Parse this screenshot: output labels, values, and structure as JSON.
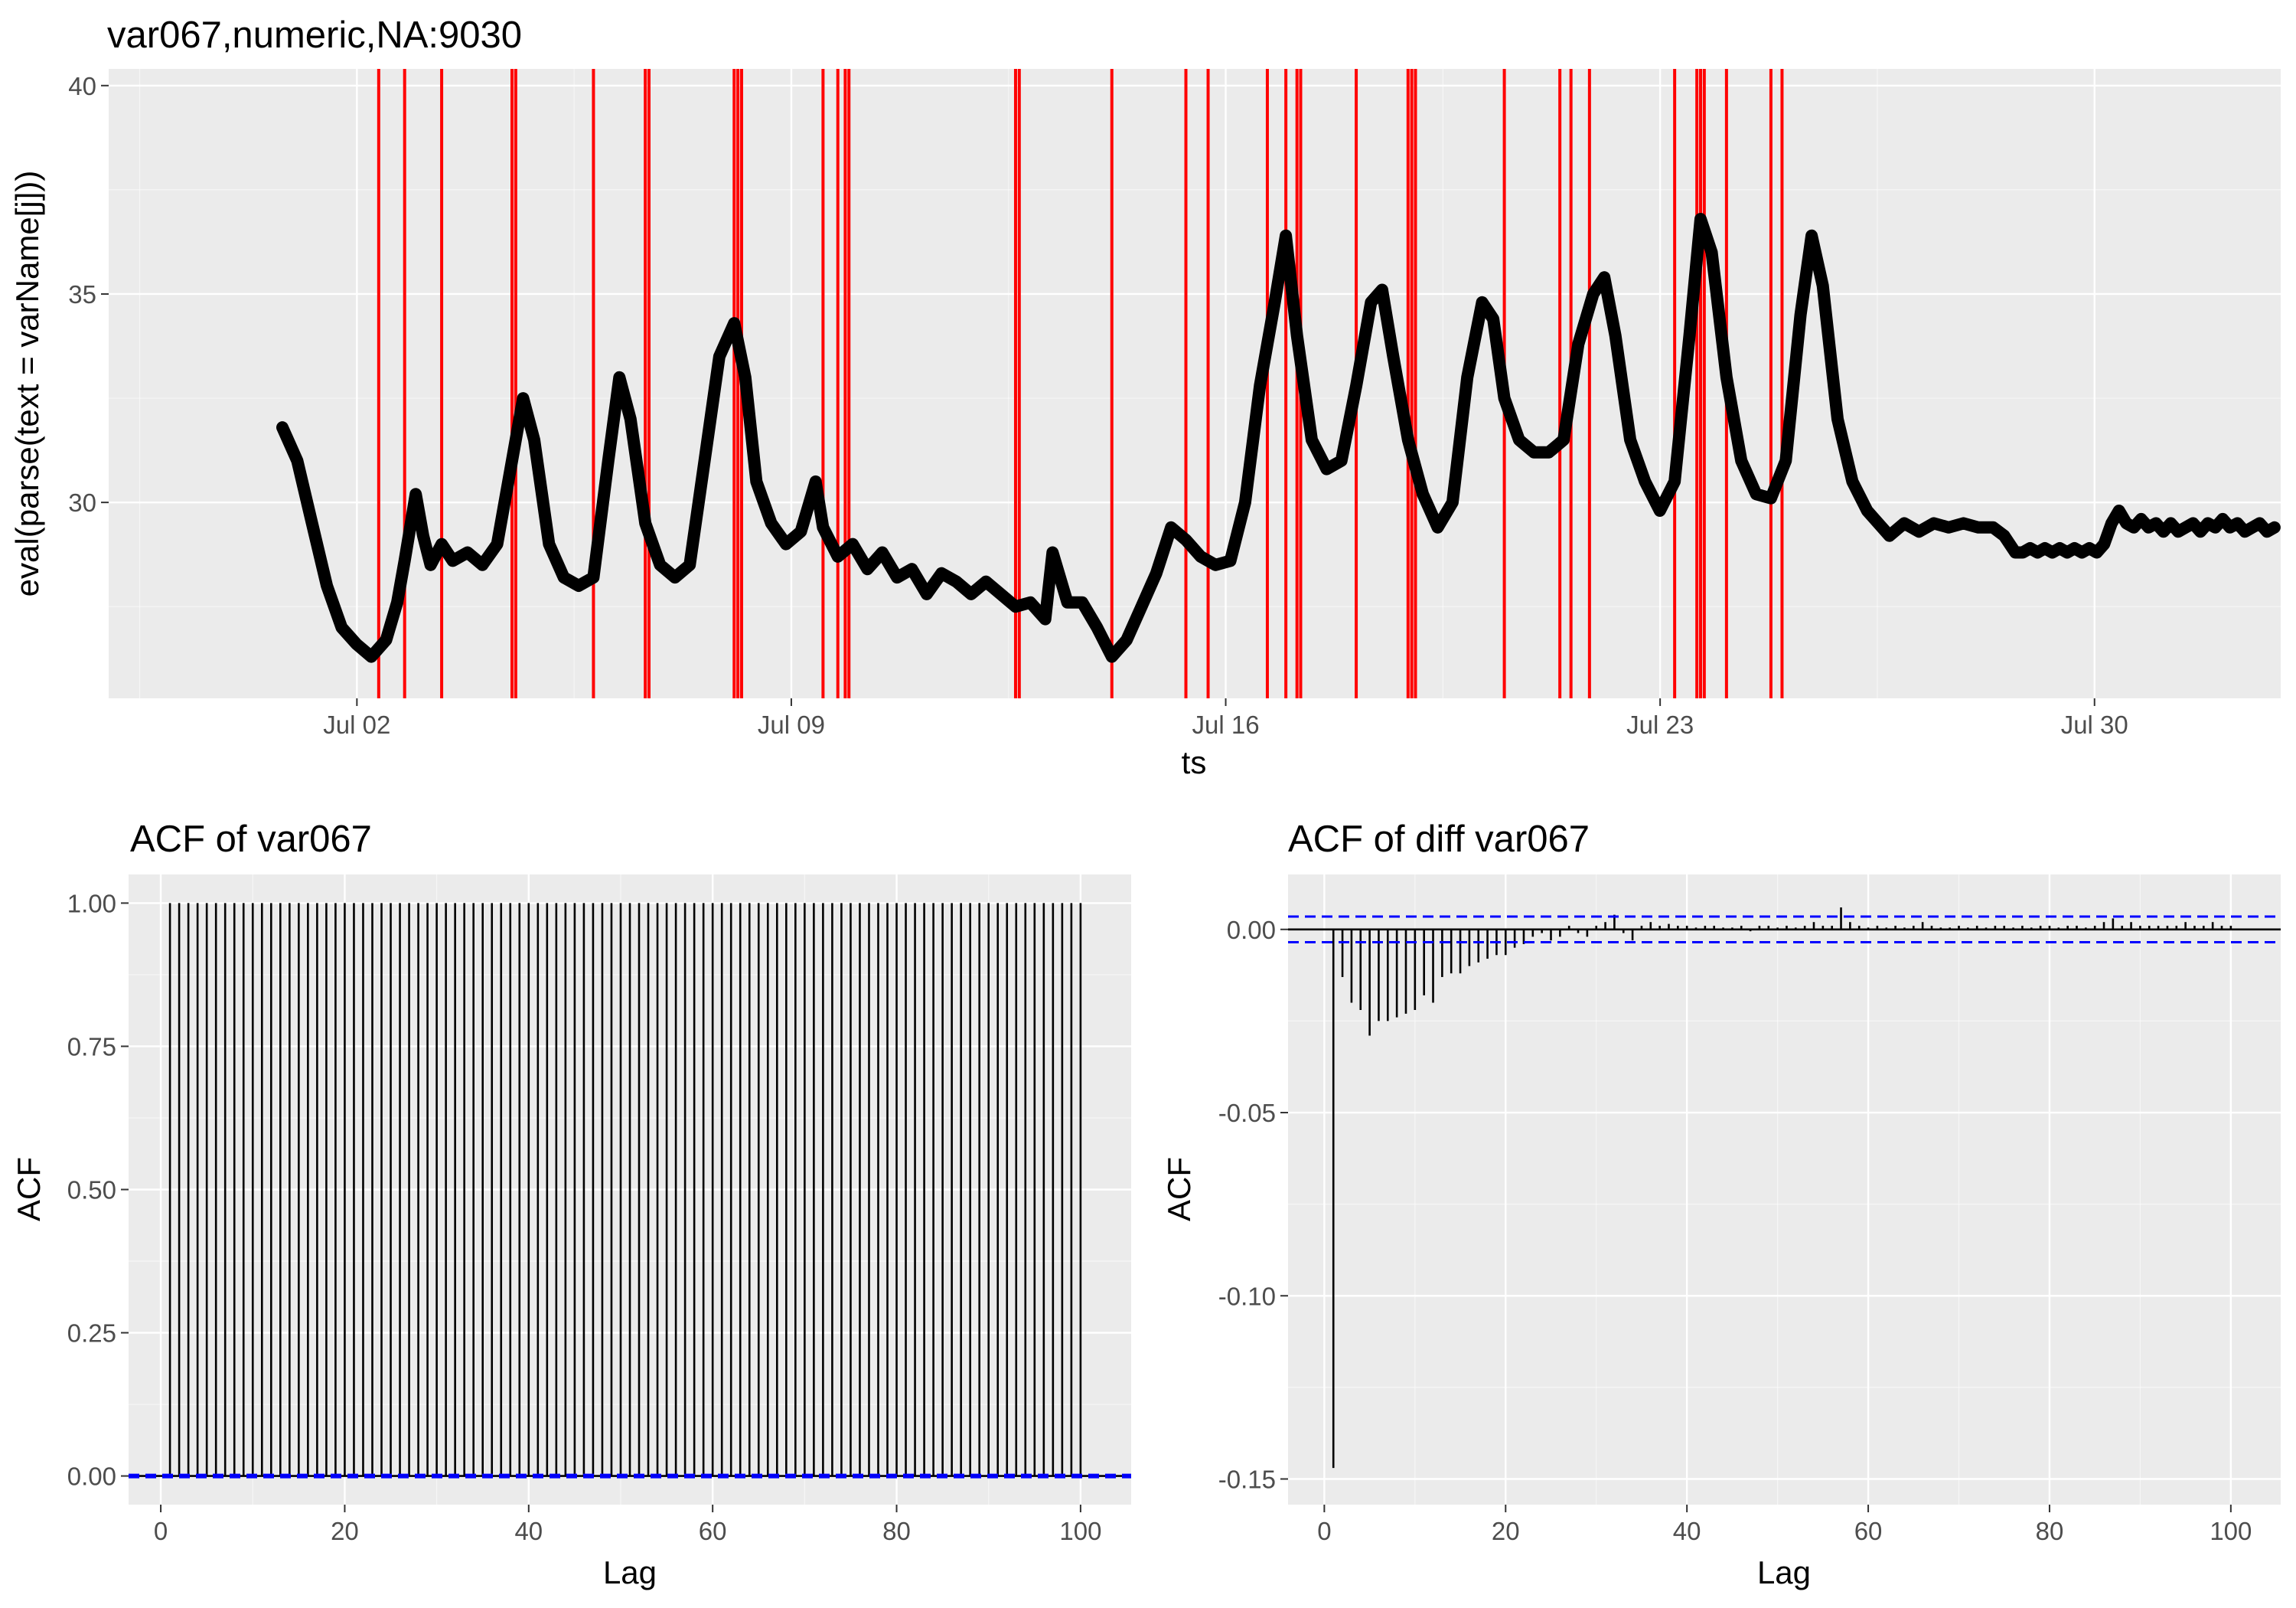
{
  "colors": {
    "panel_bg": "#ebebeb",
    "grid_major": "#ffffff",
    "series": "#000000",
    "vline": "#ff0000",
    "conf": "#0000ff",
    "tick_text": "#4d4d4d"
  },
  "chart_data": [
    {
      "type": "line",
      "title": "var067,numeric,NA:9030",
      "xlabel": "ts",
      "ylabel": "eval(parse(text = varName[j]))",
      "xlim": [
        "2023-06-28T00:00",
        "2023-08-02T00:00"
      ],
      "ylim": [
        25.3,
        40.4
      ],
      "x_ticks": [
        {
          "label": "Jul 02",
          "day": 2
        },
        {
          "label": "Jul 09",
          "day": 9
        },
        {
          "label": "Jul 16",
          "day": 16
        },
        {
          "label": "Jul 23",
          "day": 23
        },
        {
          "label": "Jul 30",
          "day": 30
        }
      ],
      "y_ticks": [
        30,
        35,
        40
      ],
      "grid": true,
      "series": [
        {
          "points": [
            [
              -0.1,
              31.8
            ],
            [
              0.1,
              31
            ],
            [
              0.3,
              29.5
            ],
            [
              0.5,
              28
            ],
            [
              0.7,
              27
            ],
            [
              0.9,
              26.6
            ],
            [
              1.1,
              26.3
            ],
            [
              1.3,
              26.7
            ],
            [
              1.45,
              27.6
            ],
            [
              1.55,
              28.6
            ],
            [
              1.7,
              30.2
            ],
            [
              1.8,
              29.2
            ],
            [
              1.9,
              28.5
            ],
            [
              2.05,
              29
            ],
            [
              2.2,
              28.6
            ],
            [
              2.4,
              28.8
            ],
            [
              2.6,
              28.5
            ],
            [
              2.8,
              29
            ],
            [
              3.0,
              31
            ],
            [
              3.15,
              32.5
            ],
            [
              3.3,
              31.5
            ],
            [
              3.5,
              29
            ],
            [
              3.7,
              28.2
            ],
            [
              3.9,
              28
            ],
            [
              4.1,
              28.2
            ],
            [
              4.3,
              31
            ],
            [
              4.45,
              33
            ],
            [
              4.6,
              32
            ],
            [
              4.8,
              29.5
            ],
            [
              5.0,
              28.5
            ],
            [
              5.2,
              28.2
            ],
            [
              5.4,
              28.5
            ],
            [
              5.6,
              31
            ],
            [
              5.8,
              33.5
            ],
            [
              6.0,
              34.3
            ],
            [
              6.15,
              33
            ],
            [
              6.3,
              30.5
            ],
            [
              6.5,
              29.5
            ],
            [
              6.7,
              29
            ],
            [
              6.9,
              29.3
            ],
            [
              7.1,
              30.5
            ],
            [
              7.2,
              29.4
            ],
            [
              7.4,
              28.7
            ],
            [
              7.6,
              29
            ],
            [
              7.8,
              28.4
            ],
            [
              8.0,
              28.8
            ],
            [
              8.2,
              28.2
            ],
            [
              8.4,
              28.4
            ],
            [
              8.6,
              27.8
            ],
            [
              8.8,
              28.3
            ],
            [
              9.0,
              28.1
            ],
            [
              9.2,
              27.8
            ],
            [
              9.4,
              28.1
            ],
            [
              9.6,
              27.8
            ],
            [
              9.8,
              27.5
            ],
            [
              10.0,
              27.6
            ],
            [
              10.2,
              27.2
            ],
            [
              10.3,
              28.8
            ],
            [
              10.5,
              27.6
            ],
            [
              10.7,
              27.6
            ],
            [
              10.9,
              27
            ],
            [
              11.1,
              26.3
            ],
            [
              11.3,
              26.7
            ],
            [
              11.5,
              27.5
            ],
            [
              11.7,
              28.3
            ],
            [
              11.9,
              29.4
            ],
            [
              12.1,
              29.1
            ],
            [
              12.3,
              28.7
            ],
            [
              12.5,
              28.5
            ],
            [
              12.7,
              28.6
            ],
            [
              12.9,
              30
            ],
            [
              13.1,
              32.8
            ],
            [
              13.3,
              34.8
            ],
            [
              13.45,
              36.4
            ],
            [
              13.6,
              34
            ],
            [
              13.8,
              31.5
            ],
            [
              14.0,
              30.8
            ],
            [
              14.2,
              31
            ],
            [
              14.4,
              32.8
            ],
            [
              14.6,
              34.8
            ],
            [
              14.75,
              35.1
            ],
            [
              14.9,
              33.5
            ],
            [
              15.1,
              31.5
            ],
            [
              15.3,
              30.2
            ],
            [
              15.5,
              29.4
            ],
            [
              15.7,
              30
            ],
            [
              15.9,
              33
            ],
            [
              16.1,
              34.8
            ],
            [
              16.25,
              34.4
            ],
            [
              16.4,
              32.5
            ],
            [
              16.6,
              31.5
            ],
            [
              16.8,
              31.2
            ],
            [
              17.0,
              31.2
            ],
            [
              17.2,
              31.5
            ],
            [
              17.4,
              33.8
            ],
            [
              17.6,
              35
            ],
            [
              17.75,
              35.4
            ],
            [
              17.9,
              34
            ],
            [
              18.1,
              31.5
            ],
            [
              18.3,
              30.5
            ],
            [
              18.5,
              29.8
            ],
            [
              18.7,
              30.5
            ],
            [
              18.9,
              34
            ],
            [
              19.05,
              36.8
            ],
            [
              19.2,
              36
            ],
            [
              19.4,
              33
            ],
            [
              19.6,
              31
            ],
            [
              19.8,
              30.2
            ],
            [
              20.0,
              30.1
            ],
            [
              20.2,
              31
            ],
            [
              20.4,
              34.5
            ],
            [
              20.55,
              36.4
            ],
            [
              20.7,
              35.2
            ],
            [
              20.9,
              32
            ],
            [
              21.1,
              30.5
            ],
            [
              21.3,
              29.8
            ],
            [
              21.4,
              29.6
            ],
            [
              21.6,
              29.2
            ],
            [
              21.8,
              29.5
            ],
            [
              22.0,
              29.3
            ],
            [
              22.2,
              29.5
            ],
            [
              22.4,
              29.4
            ],
            [
              22.6,
              29.5
            ],
            [
              22.8,
              29.4
            ],
            [
              23.0,
              29.4
            ],
            [
              23.15,
              29.2
            ],
            [
              23.3,
              28.8
            ],
            [
              23.4,
              28.8
            ],
            [
              23.5,
              28.9
            ],
            [
              23.6,
              28.8
            ],
            [
              23.7,
              28.9
            ],
            [
              23.8,
              28.8
            ],
            [
              23.9,
              28.9
            ],
            [
              24.0,
              28.8
            ],
            [
              24.1,
              28.9
            ],
            [
              24.2,
              28.8
            ],
            [
              24.3,
              28.9
            ],
            [
              24.4,
              28.8
            ],
            [
              24.5,
              29
            ],
            [
              24.6,
              29.5
            ],
            [
              24.7,
              29.8
            ],
            [
              24.8,
              29.5
            ],
            [
              24.9,
              29.4
            ],
            [
              25.0,
              29.6
            ],
            [
              25.1,
              29.4
            ],
            [
              25.2,
              29.5
            ],
            [
              25.3,
              29.3
            ],
            [
              25.4,
              29.5
            ],
            [
              25.5,
              29.3
            ],
            [
              25.6,
              29.4
            ],
            [
              25.7,
              29.5
            ],
            [
              25.8,
              29.3
            ],
            [
              25.9,
              29.5
            ],
            [
              26.0,
              29.4
            ],
            [
              26.1,
              29.6
            ],
            [
              26.2,
              29.4
            ],
            [
              26.3,
              29.5
            ],
            [
              26.4,
              29.3
            ],
            [
              26.5,
              29.4
            ],
            [
              26.6,
              29.5
            ],
            [
              26.7,
              29.3
            ],
            [
              26.8,
              29.4
            ]
          ]
        }
      ],
      "overlay_vlines_red": [
        1.2,
        1.55,
        2.05,
        3.0,
        3.05,
        4.1,
        4.8,
        4.85,
        6.0,
        6.05,
        6.1,
        7.2,
        7.4,
        7.5,
        7.55,
        9.8,
        9.85,
        11.1,
        12.1,
        12.4,
        13.2,
        13.45,
        13.6,
        13.65,
        14.4,
        15.1,
        15.15,
        15.2,
        16.4,
        17.15,
        17.3,
        17.55,
        18.7,
        19.0,
        19.05,
        19.1,
        19.4,
        20.0,
        20.15
      ]
    },
    {
      "type": "bar",
      "title": "ACF of var067",
      "xlabel": "Lag",
      "ylabel": "ACF",
      "xlim": [
        -3.5,
        105.5
      ],
      "ylim": [
        -0.05,
        1.05
      ],
      "x_ticks": [
        0,
        20,
        40,
        60,
        80,
        100
      ],
      "y_ticks": [
        0.0,
        0.25,
        0.5,
        0.75,
        1.0
      ],
      "y_tick_labels": [
        "0.00",
        "0.25",
        "0.50",
        "0.75",
        "1.00"
      ],
      "lags_from": 1,
      "lags_to": 100,
      "values": "all 1.00",
      "conf_band": 0.002,
      "grid": true
    },
    {
      "type": "bar",
      "title": "ACF of diff var067",
      "xlabel": "Lag",
      "ylabel": "ACF",
      "xlim": [
        -4.0,
        105.5
      ],
      "ylim": [
        -0.157,
        0.015
      ],
      "x_ticks": [
        0,
        20,
        40,
        60,
        80,
        100
      ],
      "y_ticks": [
        -0.15,
        -0.1,
        -0.05,
        0.0
      ],
      "y_tick_labels": [
        "-0.15",
        "-0.10",
        "-0.05",
        "0.00"
      ],
      "lags": [
        1,
        2,
        3,
        4,
        5,
        6,
        7,
        8,
        9,
        10,
        11,
        12,
        13,
        14,
        15,
        16,
        17,
        18,
        19,
        20,
        21,
        22,
        23,
        24,
        25,
        26,
        27,
        28,
        29,
        30,
        31,
        32,
        33,
        34,
        35,
        36,
        37,
        38,
        39,
        40,
        41,
        42,
        43,
        44,
        45,
        46,
        47,
        48,
        49,
        50,
        51,
        52,
        53,
        54,
        55,
        56,
        57,
        58,
        59,
        60,
        61,
        62,
        63,
        64,
        65,
        66,
        67,
        68,
        69,
        70,
        71,
        72,
        73,
        74,
        75,
        76,
        77,
        78,
        79,
        80,
        81,
        82,
        83,
        84,
        85,
        86,
        87,
        88,
        89,
        90,
        91,
        92,
        93,
        94,
        95,
        96,
        97,
        98,
        99,
        100
      ],
      "values": [
        -0.147,
        -0.013,
        -0.02,
        -0.022,
        -0.029,
        -0.025,
        -0.025,
        -0.024,
        -0.023,
        -0.022,
        -0.018,
        -0.02,
        -0.013,
        -0.012,
        -0.012,
        -0.01,
        -0.009,
        -0.008,
        -0.007,
        -0.007,
        -0.005,
        -0.004,
        -0.002,
        -0.001,
        -0.003,
        -0.002,
        0.001,
        -0.001,
        -0.002,
        0.001,
        0.002,
        0.004,
        -0.001,
        -0.003,
        0.001,
        0.002,
        0.001,
        0.0015,
        0.001,
        0.001,
        0.0005,
        0.001,
        0.001,
        0.0005,
        0.0005,
        0.001,
        -0.0005,
        0.001,
        0.001,
        0.0005,
        0.001,
        0.0005,
        0.001,
        0.002,
        0.001,
        0.001,
        0.006,
        0.002,
        0.001,
        0.0005,
        0.001,
        0.0005,
        0.001,
        0.0005,
        0.001,
        0.002,
        0.001,
        0.0005,
        0.0005,
        0.001,
        0.0005,
        0.001,
        0.0005,
        0.001,
        0.001,
        0.0005,
        0.001,
        0.0005,
        0.001,
        0.001,
        0.0005,
        0.001,
        0.001,
        0.0005,
        0.001,
        0.002,
        0.003,
        0.001,
        0.002,
        0.001,
        0.001,
        0.001,
        0.001,
        0.001,
        0.002,
        0.001,
        0.001,
        0.002,
        0.001,
        0.001
      ],
      "conf_band": 0.0035,
      "grid": true
    }
  ]
}
